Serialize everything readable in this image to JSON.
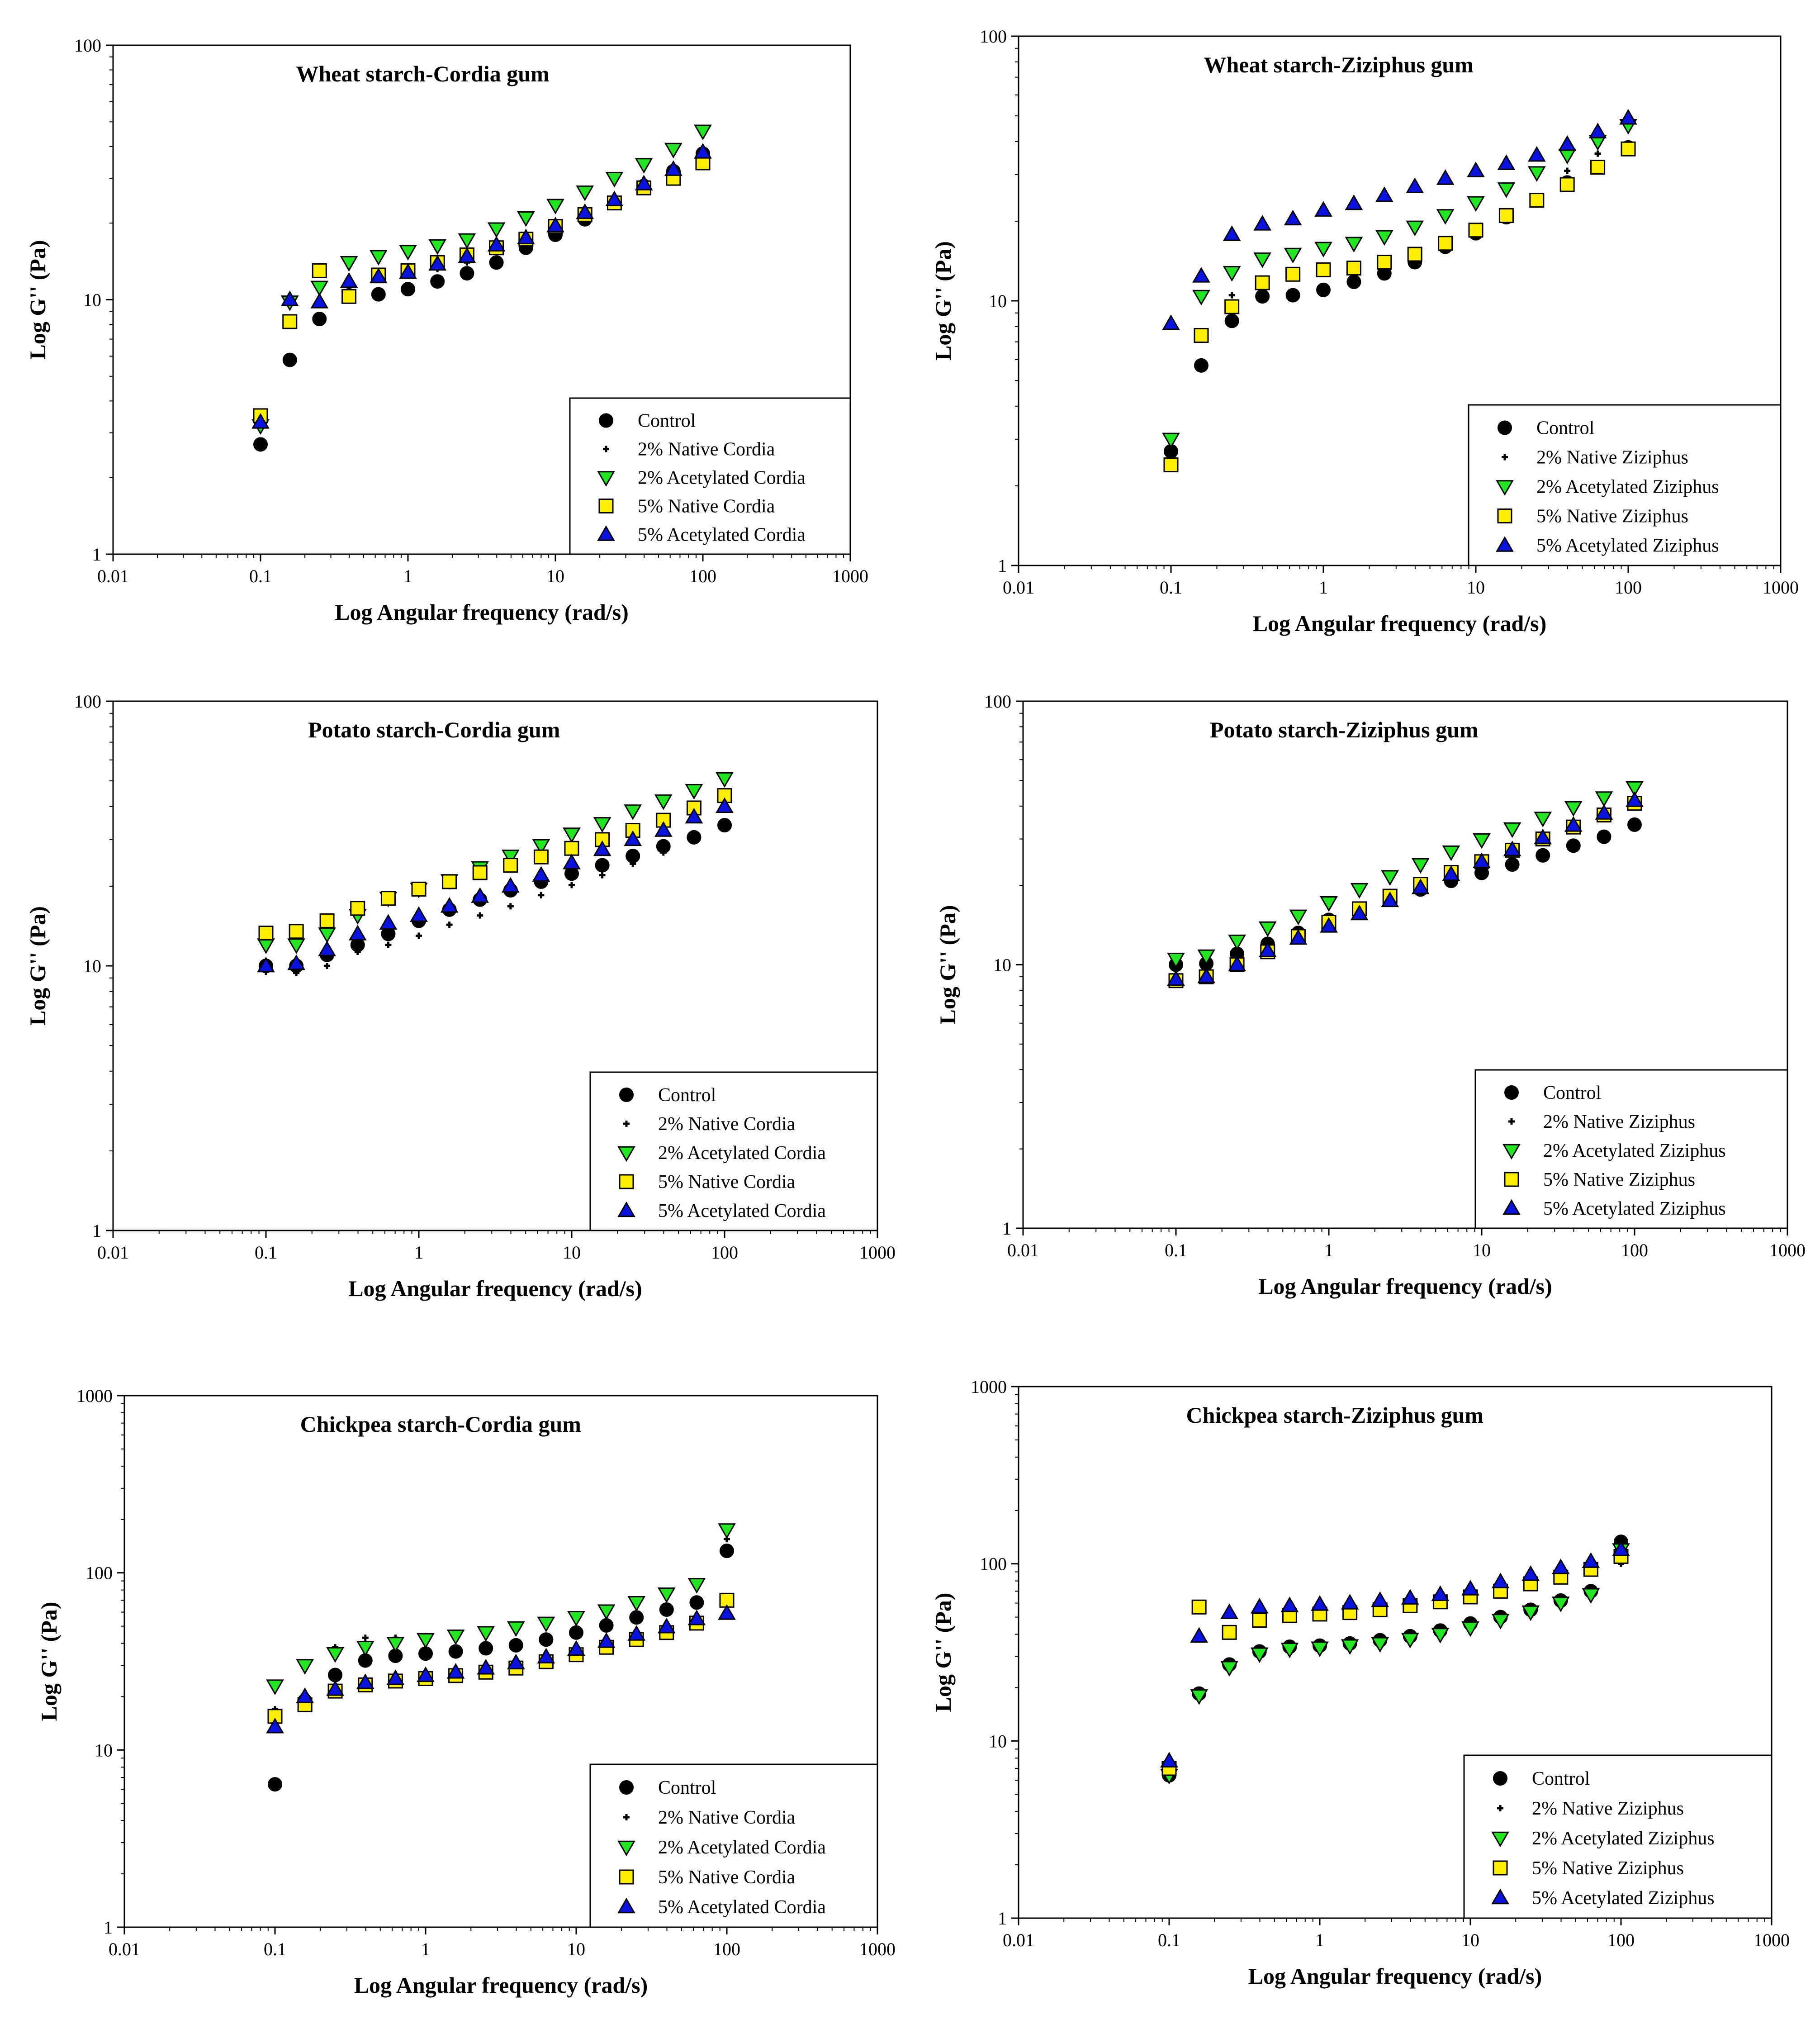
{
  "figure": {
    "colors": {
      "Control": "#000000",
      "Native2": "#000000",
      "Acetylated2": "#22e622",
      "Native5": "#ffee00",
      "Acetylated5": "#0a12e0",
      "outline": "#000000"
    },
    "marker_shapes": {
      "Control": "circle",
      "Native2": "plus",
      "Acetylated2": "triangle-down",
      "Native5": "square",
      "Acetylated5": "triangle-up"
    }
  },
  "chart_data": [
    {
      "type": "scatter",
      "title": "Wheat starch-Cordia gum",
      "xlabel": "Log Angular frequency (rad/s)",
      "ylabel": "Log G'' (Pa)",
      "xscale": "log",
      "yscale": "log",
      "xlim": [
        0.01,
        1000
      ],
      "ylim": [
        1,
        100
      ],
      "xticks": [
        "0.01",
        "0.1",
        "1",
        "10",
        "100",
        "1000"
      ],
      "yticks": [
        "1",
        "10",
        "100"
      ],
      "legend_position": "bottom-right",
      "x": [
        0.1,
        0.158,
        0.251,
        0.398,
        0.631,
        1,
        1.585,
        2.512,
        3.981,
        6.31,
        10,
        15.85,
        25.12,
        39.81,
        63.1,
        100
      ],
      "series": [
        {
          "key": "Control",
          "name": "Control",
          "values": [
            2.7,
            5.8,
            8.4,
            10.4,
            10.5,
            11,
            11.8,
            12.7,
            14,
            16,
            18,
            20.7,
            24,
            28,
            32,
            37.5
          ]
        },
        {
          "key": "Native2",
          "name": "2% Native Cordia",
          "values": [
            3.3,
            10,
            12.5,
            12,
            12.3,
            12.7,
            13.2,
            14,
            15.5,
            17,
            19,
            21.5,
            24.5,
            28,
            31.5,
            36
          ]
        },
        {
          "key": "Acetylated2",
          "name": "2% Acetylated Cordia",
          "values": [
            3.2,
            9.8,
            11.2,
            14,
            14.8,
            15.5,
            16.3,
            17.2,
            19,
            21,
            23.5,
            26.5,
            30,
            34,
            39,
            46
          ]
        },
        {
          "key": "Native5",
          "name": "5% Native Cordia",
          "values": [
            3.5,
            8.2,
            13,
            10.3,
            12.5,
            13,
            14,
            15,
            16,
            17.3,
            19.4,
            21.6,
            24,
            27.5,
            30,
            34.5
          ]
        },
        {
          "key": "Acetylated5",
          "name": "5% Acetylated Cordia",
          "values": [
            3.3,
            10,
            9.8,
            11.8,
            12.3,
            12.8,
            13.8,
            14.8,
            16.4,
            17.5,
            19.5,
            22,
            24.7,
            28.5,
            32.5,
            38
          ]
        }
      ]
    },
    {
      "type": "scatter",
      "title": "Wheat starch-Ziziphus gum",
      "xlabel": "Log Angular frequency (rad/s)",
      "ylabel": "Log G'' (Pa)",
      "xscale": "log",
      "yscale": "log",
      "xlim": [
        0.01,
        1000
      ],
      "ylim": [
        1,
        100
      ],
      "xticks": [
        "0.01",
        "0.1",
        "1",
        "10",
        "100",
        "1000"
      ],
      "yticks": [
        "1",
        "10",
        "100"
      ],
      "legend_position": "bottom-right",
      "x": [
        0.1,
        0.158,
        0.251,
        0.398,
        0.631,
        1,
        1.585,
        2.512,
        3.981,
        6.31,
        10,
        15.85,
        25.12,
        39.81,
        63.1,
        100
      ],
      "series": [
        {
          "key": "Control",
          "name": "Control",
          "values": [
            2.7,
            5.7,
            8.4,
            10.4,
            10.5,
            11,
            11.8,
            12.7,
            14,
            16,
            18,
            20.7,
            24,
            28,
            32,
            38
          ]
        },
        {
          "key": "Native2",
          "name": "2% Native Ziziphus",
          "values": [
            2.6,
            7.5,
            10.5,
            11.8,
            12.5,
            13,
            13.5,
            14.5,
            15.3,
            16.8,
            18.7,
            21,
            24.5,
            31,
            36,
            48
          ]
        },
        {
          "key": "Acetylated2",
          "name": "2% Acetylated Ziziphus",
          "values": [
            3,
            10.4,
            12.8,
            14.4,
            15,
            15.8,
            16.5,
            17.5,
            19,
            21,
            23.5,
            26.5,
            30.5,
            35.5,
            40,
            46
          ]
        },
        {
          "key": "Native5",
          "name": "5% Native Ziziphus",
          "values": [
            2.4,
            7.4,
            9.5,
            11.7,
            12.6,
            13.1,
            13.3,
            14,
            15,
            16.5,
            18.5,
            21,
            24,
            27.5,
            32,
            37.5
          ]
        },
        {
          "key": "Acetylated5",
          "name": "5% Acetylated Ziziphus",
          "values": [
            8.2,
            12.4,
            17.8,
            19.5,
            20.4,
            22,
            23.3,
            25,
            27,
            29,
            31,
            33,
            35.5,
            39,
            43.5,
            49
          ]
        }
      ]
    },
    {
      "type": "scatter",
      "title": "Potato starch-Cordia gum",
      "xlabel": "Log Angular frequency (rad/s)",
      "ylabel": "Log G'' (Pa)",
      "xscale": "log",
      "yscale": "log",
      "xlim": [
        0.01,
        1000
      ],
      "ylim": [
        1,
        100
      ],
      "xticks": [
        "0.01",
        "0.1",
        "1",
        "10",
        "100",
        "1000"
      ],
      "yticks": [
        "1",
        "10",
        "100"
      ],
      "legend_position": "bottom-right",
      "x": [
        0.1,
        0.158,
        0.251,
        0.398,
        0.631,
        1,
        1.585,
        2.512,
        3.981,
        6.31,
        10,
        15.85,
        25.12,
        39.81,
        63.1,
        100
      ],
      "series": [
        {
          "key": "Control",
          "name": "Control",
          "values": [
            10,
            10,
            11,
            12,
            13.2,
            14.8,
            16.3,
            17.8,
            19.3,
            20.8,
            22.3,
            24,
            26,
            28.3,
            30.6,
            34
          ]
        },
        {
          "key": "Native2",
          "name": "2% Native Cordia",
          "values": [
            9.5,
            9.4,
            10,
            11.3,
            12,
            13,
            14.3,
            15.5,
            16.8,
            18.5,
            20.2,
            22,
            24.3,
            26.8,
            29.8,
            33
          ]
        },
        {
          "key": "Acetylated2",
          "name": "2% Acetylated Cordia",
          "values": [
            12,
            12,
            13.2,
            15.5,
            18,
            19.5,
            21,
            23.5,
            26,
            28.5,
            31.5,
            34.5,
            38.5,
            42,
            46,
            51
          ]
        },
        {
          "key": "Native5",
          "name": "5% Native Cordia",
          "values": [
            13.3,
            13.5,
            14.8,
            16.5,
            18,
            19.5,
            20.8,
            22.5,
            24,
            25.8,
            27.8,
            30,
            32.5,
            35.5,
            39.5,
            44
          ]
        },
        {
          "key": "Acetylated5",
          "name": "5% Acetylated Cordia",
          "values": [
            10,
            10.2,
            11.5,
            13.2,
            14.5,
            15.5,
            16.8,
            18.3,
            20,
            22,
            24.5,
            27.5,
            30,
            32.5,
            36.5,
            40
          ]
        }
      ]
    },
    {
      "type": "scatter",
      "title": "Potato starch-Ziziphus gum",
      "xlabel": "Log Angular frequency (rad/s)",
      "ylabel": "Log G'' (Pa)",
      "xscale": "log",
      "yscale": "log",
      "xlim": [
        0.01,
        1000
      ],
      "ylim": [
        1,
        100
      ],
      "xticks": [
        "0.01",
        "0.1",
        "1",
        "10",
        "100",
        "1000"
      ],
      "yticks": [
        "1",
        "10",
        "100"
      ],
      "legend_position": "bottom-right",
      "x": [
        0.1,
        0.158,
        0.251,
        0.398,
        0.631,
        1,
        1.585,
        2.512,
        3.981,
        6.31,
        10,
        15.85,
        25.12,
        39.81,
        63.1,
        100
      ],
      "series": [
        {
          "key": "Control",
          "name": "Control",
          "values": [
            10,
            10.1,
            11,
            12,
            13.2,
            14.8,
            16.3,
            17.8,
            19.3,
            20.8,
            22.3,
            24,
            26,
            28.3,
            30.6,
            34
          ]
        },
        {
          "key": "Native2",
          "name": "2% Native Ziziphus",
          "values": [
            9,
            9,
            10.2,
            11.5,
            13,
            14.7,
            16.5,
            18.4,
            20.6,
            22.8,
            25,
            27.6,
            30.5,
            33.5,
            37,
            41
          ]
        },
        {
          "key": "Acetylated2",
          "name": "2% Acetylated Ziziphus",
          "values": [
            10.5,
            10.8,
            12.3,
            13.8,
            15.3,
            17.2,
            19.3,
            21.6,
            24,
            26.8,
            29.8,
            32.8,
            36,
            39.5,
            43,
            47
          ]
        },
        {
          "key": "Native5",
          "name": "5% Native Ziziphus",
          "values": [
            8.7,
            9,
            10,
            11.2,
            12.8,
            14.5,
            16.3,
            18.2,
            20.2,
            22.4,
            24.6,
            27.2,
            30,
            33.3,
            37,
            41
          ]
        },
        {
          "key": "Acetylated5",
          "name": "5% Acetylated Ziziphus",
          "values": [
            8.8,
            9,
            10,
            11.3,
            12.6,
            14,
            15.6,
            17.5,
            19.6,
            22,
            24.6,
            27.3,
            30.3,
            33.8,
            37.6,
            42
          ]
        }
      ]
    },
    {
      "type": "scatter",
      "title": "Chickpea starch-Cordia gum",
      "xlabel": "Log Angular frequency (rad/s)",
      "ylabel": "Log G'' (Pa)",
      "xscale": "log",
      "yscale": "log",
      "xlim": [
        0.01,
        1000
      ],
      "ylim": [
        1,
        1000
      ],
      "xticks": [
        "0.01",
        "0.1",
        "1",
        "10",
        "100",
        "1000"
      ],
      "yticks": [
        "1",
        "10",
        "100",
        "1000"
      ],
      "legend_position": "bottom-right",
      "x": [
        0.1,
        0.158,
        0.251,
        0.398,
        0.631,
        1,
        1.585,
        2.512,
        3.981,
        6.31,
        10,
        15.85,
        25.12,
        39.81,
        63.1,
        100
      ],
      "series": [
        {
          "key": "Control",
          "name": "Control",
          "values": [
            6.4,
            19,
            26.5,
            32,
            34,
            35,
            36,
            37.5,
            39,
            42,
            46,
            50.5,
            56,
            62,
            68,
            133
          ]
        },
        {
          "key": "Native2",
          "name": "2% Native Cordia",
          "values": [
            17,
            20,
            38,
            43,
            43,
            44,
            45,
            47,
            49,
            52,
            56,
            61,
            68,
            75,
            83,
            155
          ]
        },
        {
          "key": "Acetylated2",
          "name": "2% Acetylated Cordia",
          "values": [
            23,
            30,
            35,
            38,
            40,
            42,
            44,
            46,
            49,
            52,
            56,
            61,
            68,
            76,
            86,
            175
          ]
        },
        {
          "key": "Native5",
          "name": "5% Native Cordia",
          "values": [
            15.5,
            18,
            21.5,
            23.3,
            24.5,
            25.3,
            26.3,
            27.5,
            29,
            31.5,
            34.5,
            38,
            42,
            46,
            52,
            70
          ]
        },
        {
          "key": "Acetylated5",
          "name": "5% Acetylated Cordia",
          "values": [
            13.5,
            20,
            22,
            24,
            25.3,
            26.3,
            27.5,
            29,
            31,
            33.5,
            37,
            41,
            45,
            49.5,
            55,
            59
          ]
        }
      ]
    },
    {
      "type": "scatter",
      "title": "Chickpea starch-Ziziphus gum",
      "xlabel": "Log Angular frequency (rad/s)",
      "ylabel": "Log G'' (Pa)",
      "xscale": "log",
      "yscale": "log",
      "xlim": [
        0.01,
        1000
      ],
      "ylim": [
        1,
        1000
      ],
      "xticks": [
        "0.01",
        "0.1",
        "1",
        "10",
        "100",
        "1000"
      ],
      "yticks": [
        "1",
        "10",
        "100",
        "1000"
      ],
      "legend_position": "bottom-right",
      "x": [
        0.1,
        0.158,
        0.251,
        0.398,
        0.631,
        1,
        1.585,
        2.512,
        3.981,
        6.31,
        10,
        15.85,
        25.12,
        39.81,
        63.1,
        100
      ],
      "series": [
        {
          "key": "Control",
          "name": "Control",
          "values": [
            6.4,
            18.5,
            27,
            32,
            34,
            34.5,
            35.5,
            37,
            39,
            42,
            46,
            50,
            55,
            62,
            70,
            133
          ]
        },
        {
          "key": "Native2",
          "name": "2% Native Ziziphus",
          "values": [
            6.5,
            18,
            26,
            31,
            33,
            34,
            35,
            36,
            38,
            40,
            44,
            48,
            54,
            62,
            70,
            100
          ]
        },
        {
          "key": "Acetylated2",
          "name": "2% Acetylated Ziziphus",
          "values": [
            6.4,
            18,
            26,
            31,
            33,
            33.5,
            34.5,
            35.5,
            37.5,
            40,
            43.5,
            48,
            53.5,
            60,
            67,
            120
          ]
        },
        {
          "key": "Native5",
          "name": "5% Native Ziziphus",
          "values": [
            7,
            57,
            41,
            48,
            51,
            52,
            53,
            55,
            58,
            61,
            65,
            70,
            77,
            84,
            93,
            110
          ]
        },
        {
          "key": "Acetylated5",
          "name": "5% Acetylated Ziziphus",
          "values": [
            7.7,
            39,
            53,
            57,
            58,
            59,
            60,
            62,
            64,
            67,
            72,
            79,
            87,
            95,
            103,
            120
          ]
        }
      ]
    }
  ]
}
